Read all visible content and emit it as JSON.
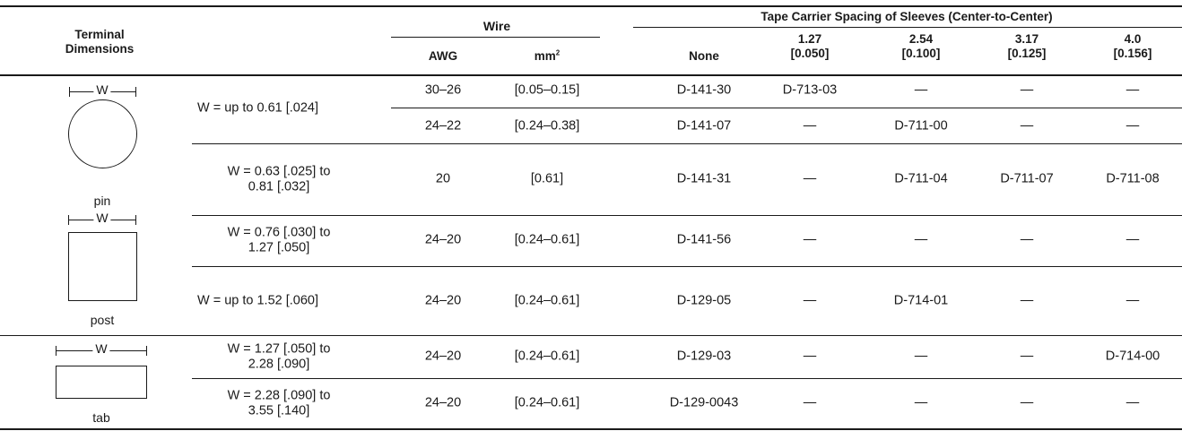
{
  "header": {
    "terminal_dimensions": [
      "Terminal",
      "Dimensions"
    ],
    "wire": "Wire",
    "awg": "AWG",
    "mm_base": "mm",
    "mm_sup": "2",
    "tape_group": "Tape Carrier Spacing of Sleeves (Center-to-Center)",
    "spacings": [
      {
        "line1": "None",
        "line2": ""
      },
      {
        "line1": "1.27",
        "line2": "[0.050]"
      },
      {
        "line1": "2.54",
        "line2": "[0.100]"
      },
      {
        "line1": "3.17",
        "line2": "[0.125]"
      },
      {
        "line1": "4.0",
        "line2": "[0.156]"
      }
    ]
  },
  "terminal_labels": {
    "dim_symbol": "W",
    "pin": "pin",
    "post": "post",
    "tab": "tab"
  },
  "rows": [
    {
      "dimension": [
        "W = up to 0.61  [.024]"
      ],
      "awg": "30–26",
      "mm": "[0.05–0.15]",
      "sleeves": [
        "D-141-30",
        "D-713-03",
        "—",
        "—",
        "—"
      ]
    },
    {
      "dimension": [],
      "awg": "24–22",
      "mm": "[0.24–0.38]",
      "sleeves": [
        "D-141-07",
        "—",
        "D-711-00",
        "—",
        "—"
      ]
    },
    {
      "dimension": [
        "W = 0.63  [.025] to",
        "0.81  [.032]"
      ],
      "awg": "20",
      "mm": "[0.61]",
      "sleeves": [
        "D-141-31",
        "—",
        "D-711-04",
        "D-711-07",
        "D-711-08"
      ]
    },
    {
      "dimension": [
        "W = 0.76  [.030] to",
        "1.27  [.050]"
      ],
      "awg": "24–20",
      "mm": "[0.24–0.61]",
      "sleeves": [
        "D-141-56",
        "—",
        "—",
        "—",
        "—"
      ]
    },
    {
      "dimension": [
        "W = up to 1.52  [.060]"
      ],
      "awg": "24–20",
      "mm": "[0.24–0.61]",
      "sleeves": [
        "D-129-05",
        "—",
        "D-714-01",
        "—",
        "—"
      ]
    },
    {
      "dimension": [
        "W = 1.27  [.050] to",
        "2.28 [.090]"
      ],
      "awg": "24–20",
      "mm": "[0.24–0.61]",
      "sleeves": [
        "D-129-03",
        "—",
        "—",
        "—",
        "D-714-00"
      ]
    },
    {
      "dimension": [
        "W = 2.28  [.090] to",
        "3.55  [.140]"
      ],
      "awg": "24–20",
      "mm": "[0.24–0.61]",
      "sleeves": [
        "D-129-0043",
        "—",
        "—",
        "—",
        "—"
      ]
    }
  ]
}
